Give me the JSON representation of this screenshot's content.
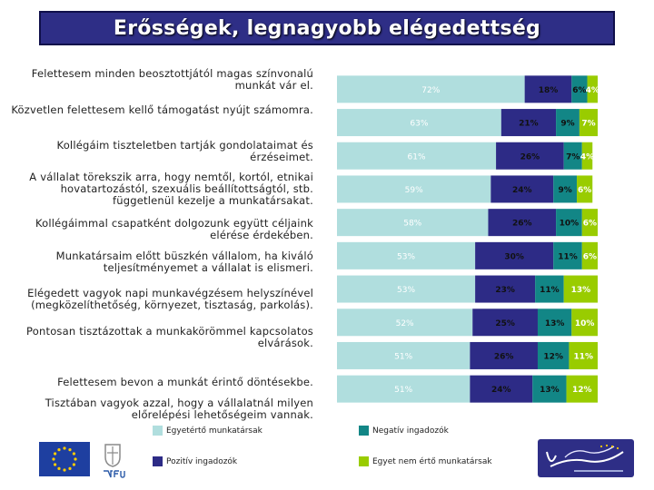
{
  "title": "Erősségek, legnagyobb elégedettség",
  "chart_data": {
    "type": "bar",
    "orientation": "horizontal",
    "stacked": true,
    "categories": [
      "Felettesem minden beosztottjától magas színvonalú munkát vár el.",
      "Közvetlen felettesem kellő támogatást nyújt számomra.",
      "Kollégáim tiszteletben tartják gondolataimat és érzéseimet.",
      "A vállalat törekszik arra, hogy nemtől, kortól, etnikai hovatartozástól, szexuális beállítottságtól, stb. függetlenül kezelje a munkatársakat.",
      "Kollégáimmal csapatként dolgozunk együtt céljaink elérése érdekében.",
      "Munkatársaim előtt büszkén vállalom, ha kiváló teljesítményemet a vállalat is elismeri.",
      "Elégedett vagyok napi munkavégzésem helyszínével (megközelíthetőség, környezet, tisztaság, parkolás).",
      "Pontosan tisztázottak a munkakörömmel kapcsolatos elvárások.",
      "Felettesem bevon a munkát érintő döntésekbe.",
      "Tisztában vagyok azzal, hogy a vállalatnál milyen előrelépési lehetőségeim vannak."
    ],
    "series": [
      {
        "name": "Egyetértő munkatársak",
        "color": "#b0dede",
        "values": [
          72,
          63,
          61,
          59,
          58,
          53,
          53,
          52,
          51,
          51
        ],
        "labels": [
          "72%",
          "63%",
          "61%",
          "59%",
          "58%",
          "53%",
          "53%",
          "52%",
          "51%",
          "51%"
        ]
      },
      {
        "name": "Pozitív ingadozók",
        "color": "#2d2b86",
        "values": [
          18,
          21,
          26,
          24,
          26,
          30,
          23,
          25,
          26,
          24
        ],
        "labels": [
          "18%",
          "21%",
          "26%",
          "24%",
          "26%",
          "30%",
          "23%",
          "25%",
          "26%",
          "24%"
        ]
      },
      {
        "name": "Negatív ingadozók",
        "color": "#128686",
        "values": [
          6,
          9,
          7,
          9,
          10,
          11,
          11,
          13,
          12,
          13
        ],
        "labels": [
          "6%",
          "9%",
          "7%",
          "9%",
          "10%",
          "11%",
          "11%",
          "13%",
          "12%",
          "13%"
        ]
      },
      {
        "name": "Egyet nem értő munkatársak",
        "color": "#99cc00",
        "values": [
          4,
          7,
          4,
          6,
          6,
          6,
          13,
          10,
          11,
          12
        ],
        "labels": [
          "4%",
          "7%",
          "4%",
          "6%",
          "6%",
          "6%",
          "13%",
          "10%",
          "11%",
          "12%"
        ]
      }
    ],
    "xlim": [
      0,
      100
    ],
    "legend_position": "bottom"
  }
}
